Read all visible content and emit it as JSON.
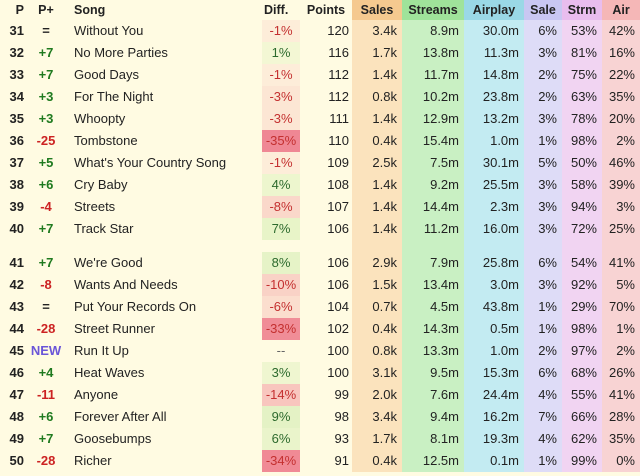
{
  "columns": {
    "pos": "P",
    "change": "P+",
    "song": "Song",
    "diff": "Diff.",
    "points": "Points",
    "sales": "Sales",
    "streams": "Streams",
    "airplay": "Airplay",
    "sale_pct": "Sale",
    "strm_pct": "Strm",
    "air_pct": "Air"
  },
  "colors": {
    "sales_header": "#f5c98f",
    "sales_bg": "#fbe3bd",
    "streams_header": "#9fe39a",
    "streams_bg": "#c9f0c3",
    "airplay_header": "#9ad8e6",
    "airplay_bg": "#c3ebf2",
    "sale_pct_header": "#c9c7f2",
    "sale_pct_bg": "#dedcf7",
    "strm_pct_header": "#e9bdee",
    "strm_pct_bg": "#f1d4f2",
    "air_pct_header": "#f5b7b7",
    "air_pct_bg": "#f8d3d3",
    "up": "#1f7a1f",
    "down": "#cc2222",
    "new": "#6a55d8"
  },
  "groups": [
    {
      "rows": [
        {
          "pos": "31",
          "change": "=",
          "dir": "eq",
          "song": "Without You",
          "diff": "-1%",
          "diff_level": 0.03,
          "points": "120",
          "sales": "3.4k",
          "streams": "8.9m",
          "airplay": "30.0m",
          "sale_pct": "6%",
          "strm_pct": "53%",
          "air_pct": "42%"
        },
        {
          "pos": "32",
          "change": "+7",
          "dir": "up",
          "song": "No More Parties",
          "diff": "1%",
          "diff_level": 0.03,
          "points": "116",
          "sales": "1.7k",
          "streams": "13.8m",
          "airplay": "11.3m",
          "sale_pct": "3%",
          "strm_pct": "81%",
          "air_pct": "16%"
        },
        {
          "pos": "33",
          "change": "+7",
          "dir": "up",
          "song": "Good Days",
          "diff": "-1%",
          "diff_level": 0.03,
          "points": "112",
          "sales": "1.4k",
          "streams": "11.7m",
          "airplay": "14.8m",
          "sale_pct": "2%",
          "strm_pct": "75%",
          "air_pct": "22%"
        },
        {
          "pos": "34",
          "change": "+3",
          "dir": "up",
          "song": "For The Night",
          "diff": "-3%",
          "diff_level": 0.09,
          "points": "112",
          "sales": "0.8k",
          "streams": "10.2m",
          "airplay": "23.8m",
          "sale_pct": "2%",
          "strm_pct": "63%",
          "air_pct": "35%"
        },
        {
          "pos": "35",
          "change": "+3",
          "dir": "up",
          "song": "Whoopty",
          "diff": "-3%",
          "diff_level": 0.09,
          "points": "111",
          "sales": "1.4k",
          "streams": "12.9m",
          "airplay": "13.2m",
          "sale_pct": "3%",
          "strm_pct": "78%",
          "air_pct": "20%"
        },
        {
          "pos": "36",
          "change": "-25",
          "dir": "down",
          "song": "Tombstone",
          "diff": "-35%",
          "diff_level": 1.0,
          "points": "110",
          "sales": "0.4k",
          "streams": "15.4m",
          "airplay": "1.0m",
          "sale_pct": "1%",
          "strm_pct": "98%",
          "air_pct": "2%"
        },
        {
          "pos": "37",
          "change": "+5",
          "dir": "up",
          "song": "What's Your Country Song",
          "diff": "-1%",
          "diff_level": 0.03,
          "points": "109",
          "sales": "2.5k",
          "streams": "7.5m",
          "airplay": "30.1m",
          "sale_pct": "5%",
          "strm_pct": "50%",
          "air_pct": "46%"
        },
        {
          "pos": "38",
          "change": "+6",
          "dir": "up",
          "song": "Cry Baby",
          "diff": "4%",
          "diff_level": 0.12,
          "points": "108",
          "sales": "1.4k",
          "streams": "9.2m",
          "airplay": "25.5m",
          "sale_pct": "3%",
          "strm_pct": "58%",
          "air_pct": "39%"
        },
        {
          "pos": "39",
          "change": "-4",
          "dir": "down",
          "song": "Streets",
          "diff": "-8%",
          "diff_level": 0.23,
          "points": "107",
          "sales": "1.4k",
          "streams": "14.4m",
          "airplay": "2.3m",
          "sale_pct": "3%",
          "strm_pct": "94%",
          "air_pct": "3%"
        },
        {
          "pos": "40",
          "change": "+7",
          "dir": "up",
          "song": "Track Star",
          "diff": "7%",
          "diff_level": 0.2,
          "points": "106",
          "sales": "1.4k",
          "streams": "11.2m",
          "airplay": "16.0m",
          "sale_pct": "3%",
          "strm_pct": "72%",
          "air_pct": "25%"
        }
      ]
    },
    {
      "rows": [
        {
          "pos": "41",
          "change": "+7",
          "dir": "up",
          "song": "We're Good",
          "diff": "8%",
          "diff_level": 0.23,
          "points": "106",
          "sales": "2.9k",
          "streams": "7.9m",
          "airplay": "25.8m",
          "sale_pct": "6%",
          "strm_pct": "54%",
          "air_pct": "41%"
        },
        {
          "pos": "42",
          "change": "-8",
          "dir": "down",
          "song": "Wants And Needs",
          "diff": "-10%",
          "diff_level": 0.29,
          "points": "106",
          "sales": "1.5k",
          "streams": "13.4m",
          "airplay": "3.0m",
          "sale_pct": "3%",
          "strm_pct": "92%",
          "air_pct": "5%"
        },
        {
          "pos": "43",
          "change": "=",
          "dir": "eq",
          "song": "Put Your Records On",
          "diff": "-6%",
          "diff_level": 0.17,
          "points": "104",
          "sales": "0.7k",
          "streams": "4.5m",
          "airplay": "43.8m",
          "sale_pct": "1%",
          "strm_pct": "29%",
          "air_pct": "70%"
        },
        {
          "pos": "44",
          "change": "-28",
          "dir": "down",
          "song": "Street Runner",
          "diff": "-33%",
          "diff_level": 0.95,
          "points": "102",
          "sales": "0.4k",
          "streams": "14.3m",
          "airplay": "0.5m",
          "sale_pct": "1%",
          "strm_pct": "98%",
          "air_pct": "1%"
        },
        {
          "pos": "45",
          "change": "NEW",
          "dir": "new",
          "song": "Run It Up",
          "diff": "--",
          "diff_level": 0,
          "points": "100",
          "sales": "0.8k",
          "streams": "13.3m",
          "airplay": "1.0m",
          "sale_pct": "2%",
          "strm_pct": "97%",
          "air_pct": "2%"
        },
        {
          "pos": "46",
          "change": "+4",
          "dir": "up",
          "song": "Heat Waves",
          "diff": "3%",
          "diff_level": 0.09,
          "points": "100",
          "sales": "3.1k",
          "streams": "9.5m",
          "airplay": "15.3m",
          "sale_pct": "6%",
          "strm_pct": "68%",
          "air_pct": "26%"
        },
        {
          "pos": "47",
          "change": "-11",
          "dir": "down",
          "song": "Anyone",
          "diff": "-14%",
          "diff_level": 0.4,
          "points": "99",
          "sales": "2.0k",
          "streams": "7.6m",
          "airplay": "24.4m",
          "sale_pct": "4%",
          "strm_pct": "55%",
          "air_pct": "41%"
        },
        {
          "pos": "48",
          "change": "+6",
          "dir": "up",
          "song": "Forever After All",
          "diff": "9%",
          "diff_level": 0.26,
          "points": "98",
          "sales": "3.4k",
          "streams": "9.4m",
          "airplay": "16.2m",
          "sale_pct": "7%",
          "strm_pct": "66%",
          "air_pct": "28%"
        },
        {
          "pos": "49",
          "change": "+7",
          "dir": "up",
          "song": "Goosebumps",
          "diff": "6%",
          "diff_level": 0.17,
          "points": "93",
          "sales": "1.7k",
          "streams": "8.1m",
          "airplay": "19.3m",
          "sale_pct": "4%",
          "strm_pct": "62%",
          "air_pct": "35%"
        },
        {
          "pos": "50",
          "change": "-28",
          "dir": "down",
          "song": "Richer",
          "diff": "-34%",
          "diff_level": 0.97,
          "points": "91",
          "sales": "0.4k",
          "streams": "12.5m",
          "airplay": "0.1m",
          "sale_pct": "1%",
          "strm_pct": "99%",
          "air_pct": "0%"
        }
      ]
    }
  ]
}
